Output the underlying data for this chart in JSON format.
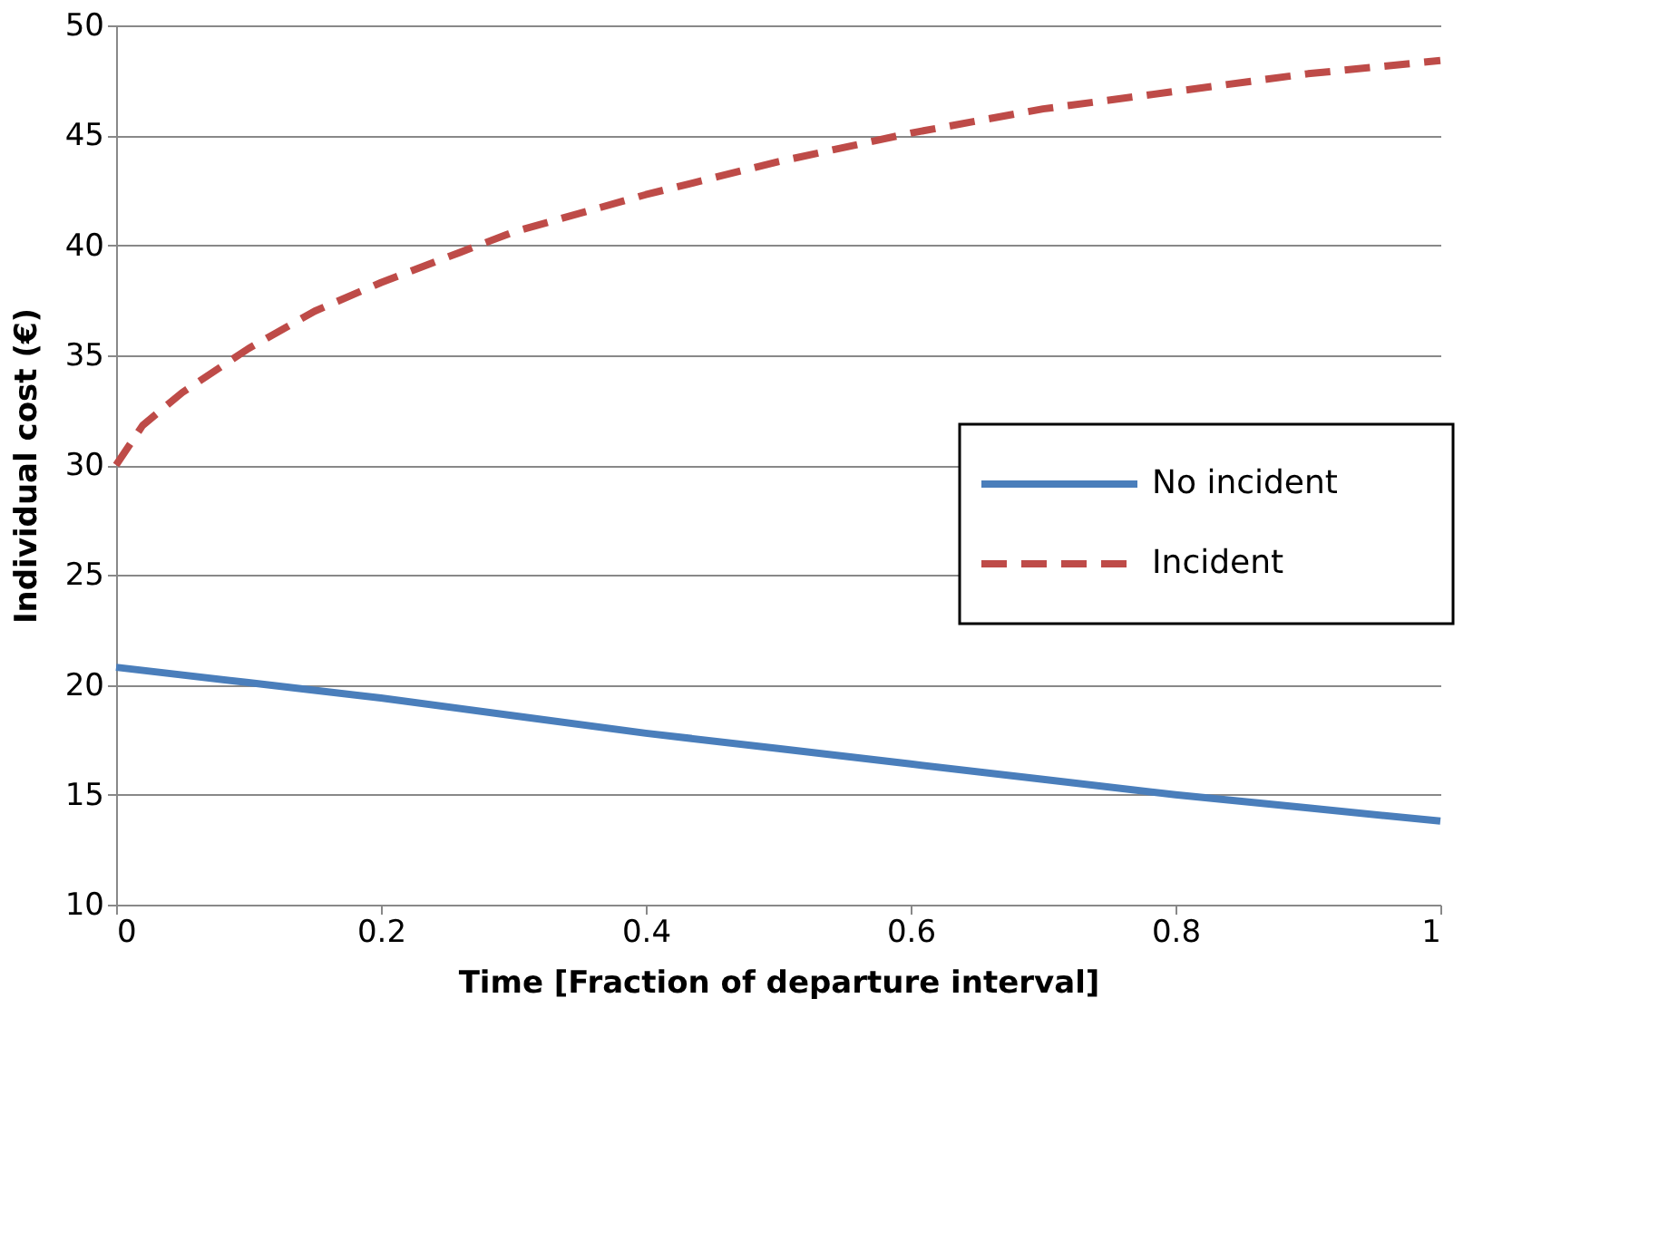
{
  "chart_data": {
    "type": "line",
    "xlabel": "Time [Fraction of departure interval]",
    "ylabel": "Individual cost  (€)",
    "xlim": [
      0,
      1
    ],
    "xticks": [
      0,
      0.2,
      0.4,
      0.6,
      0.8,
      1
    ],
    "ylim": [
      10,
      50
    ],
    "yticks": [
      10,
      15,
      20,
      25,
      30,
      35,
      40,
      45,
      50
    ],
    "grid": "y",
    "legend": "right",
    "marker": "none",
    "series": [
      {
        "name": "No incident",
        "color": "#4a7ebb",
        "line_style": "solid",
        "x": [
          0,
          0.1,
          0.2,
          0.3,
          0.4,
          0.5,
          0.6,
          0.7,
          0.8,
          0.9,
          1
        ],
        "values": [
          20.8,
          20.1,
          19.4,
          18.6,
          17.8,
          17.1,
          16.4,
          15.7,
          15.0,
          14.4,
          13.8
        ]
      },
      {
        "name": "Incident",
        "color": "#be4b48",
        "line_style": "dashed",
        "x": [
          0,
          0.02,
          0.05,
          0.1,
          0.15,
          0.2,
          0.3,
          0.4,
          0.5,
          0.6,
          0.7,
          0.8,
          0.9,
          1
        ],
        "values": [
          30,
          31.8,
          33.3,
          35.3,
          37.0,
          38.3,
          40.6,
          42.3,
          43.8,
          45.1,
          46.2,
          47.0,
          47.8,
          48.4
        ]
      }
    ]
  }
}
